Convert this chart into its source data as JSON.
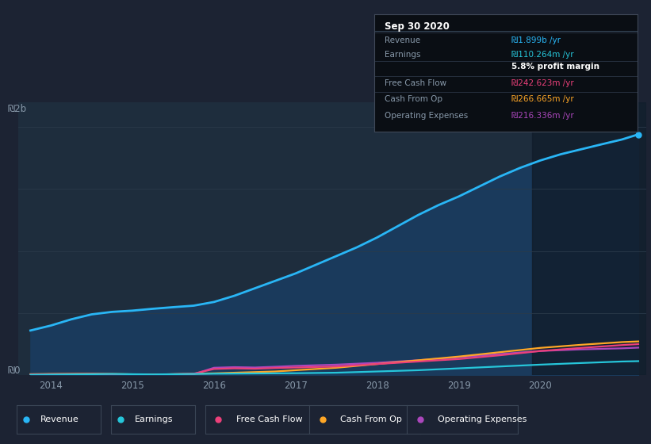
{
  "bg_color": "#1c2333",
  "plot_bg_color": "#1e2d3d",
  "overlay_color": "#151f2e",
  "overlay_start": 2019.9,
  "ylim": [
    0,
    2200000000
  ],
  "xlim": [
    2013.6,
    2021.3
  ],
  "grid_color": "#2a3a4a",
  "revenue_color": "#29b6f6",
  "earnings_color": "#26c6da",
  "fcf_color": "#ec407a",
  "cashfromop_color": "#ffa726",
  "opex_color": "#ab47bc",
  "revenue_fill": "#1a3a5c",
  "revenue": [
    [
      2013.75,
      360000000
    ],
    [
      2014.0,
      400000000
    ],
    [
      2014.25,
      450000000
    ],
    [
      2014.5,
      490000000
    ],
    [
      2014.75,
      510000000
    ],
    [
      2015.0,
      520000000
    ],
    [
      2015.25,
      535000000
    ],
    [
      2015.5,
      548000000
    ],
    [
      2015.75,
      560000000
    ],
    [
      2016.0,
      590000000
    ],
    [
      2016.25,
      640000000
    ],
    [
      2016.5,
      700000000
    ],
    [
      2016.75,
      760000000
    ],
    [
      2017.0,
      820000000
    ],
    [
      2017.25,
      890000000
    ],
    [
      2017.5,
      960000000
    ],
    [
      2017.75,
      1030000000
    ],
    [
      2018.0,
      1110000000
    ],
    [
      2018.25,
      1200000000
    ],
    [
      2018.5,
      1290000000
    ],
    [
      2018.75,
      1370000000
    ],
    [
      2019.0,
      1440000000
    ],
    [
      2019.25,
      1520000000
    ],
    [
      2019.5,
      1600000000
    ],
    [
      2019.75,
      1670000000
    ],
    [
      2020.0,
      1730000000
    ],
    [
      2020.25,
      1780000000
    ],
    [
      2020.5,
      1820000000
    ],
    [
      2020.75,
      1860000000
    ],
    [
      2021.0,
      1899000000
    ],
    [
      2021.2,
      1940000000
    ]
  ],
  "earnings": [
    [
      2013.75,
      3000000
    ],
    [
      2014.0,
      5000000
    ],
    [
      2014.5,
      8000000
    ],
    [
      2014.75,
      10000000
    ],
    [
      2015.0,
      8000000
    ],
    [
      2015.25,
      6000000
    ],
    [
      2015.5,
      8000000
    ],
    [
      2015.75,
      10000000
    ],
    [
      2016.0,
      12000000
    ],
    [
      2016.5,
      14000000
    ],
    [
      2017.0,
      16000000
    ],
    [
      2017.5,
      20000000
    ],
    [
      2018.0,
      30000000
    ],
    [
      2018.5,
      40000000
    ],
    [
      2019.0,
      55000000
    ],
    [
      2019.5,
      70000000
    ],
    [
      2020.0,
      85000000
    ],
    [
      2020.5,
      98000000
    ],
    [
      2021.0,
      110264000
    ],
    [
      2021.2,
      113000000
    ]
  ],
  "fcf": [
    [
      2013.75,
      5000000
    ],
    [
      2014.0,
      8000000
    ],
    [
      2014.5,
      10000000
    ],
    [
      2014.75,
      8000000
    ],
    [
      2015.0,
      5000000
    ],
    [
      2015.25,
      3000000
    ],
    [
      2015.5,
      8000000
    ],
    [
      2015.75,
      12000000
    ],
    [
      2016.0,
      50000000
    ],
    [
      2016.25,
      55000000
    ],
    [
      2016.5,
      52000000
    ],
    [
      2016.75,
      58000000
    ],
    [
      2017.0,
      62000000
    ],
    [
      2017.5,
      70000000
    ],
    [
      2018.0,
      90000000
    ],
    [
      2018.5,
      110000000
    ],
    [
      2019.0,
      130000000
    ],
    [
      2019.5,
      160000000
    ],
    [
      2020.0,
      195000000
    ],
    [
      2020.5,
      220000000
    ],
    [
      2021.0,
      242623000
    ],
    [
      2021.2,
      250000000
    ]
  ],
  "cashfromop": [
    [
      2013.75,
      8000000
    ],
    [
      2014.0,
      10000000
    ],
    [
      2014.5,
      12000000
    ],
    [
      2014.75,
      10000000
    ],
    [
      2015.0,
      7000000
    ],
    [
      2015.25,
      5000000
    ],
    [
      2015.5,
      8000000
    ],
    [
      2015.75,
      12000000
    ],
    [
      2016.0,
      15000000
    ],
    [
      2016.25,
      20000000
    ],
    [
      2016.5,
      25000000
    ],
    [
      2016.75,
      30000000
    ],
    [
      2017.0,
      40000000
    ],
    [
      2017.5,
      60000000
    ],
    [
      2018.0,
      90000000
    ],
    [
      2018.5,
      120000000
    ],
    [
      2019.0,
      150000000
    ],
    [
      2019.5,
      185000000
    ],
    [
      2020.0,
      220000000
    ],
    [
      2020.5,
      245000000
    ],
    [
      2021.0,
      266665000
    ],
    [
      2021.2,
      272000000
    ]
  ],
  "opex": [
    [
      2013.75,
      4000000
    ],
    [
      2014.0,
      6000000
    ],
    [
      2014.5,
      9000000
    ],
    [
      2014.75,
      7000000
    ],
    [
      2015.0,
      4000000
    ],
    [
      2015.25,
      3000000
    ],
    [
      2015.5,
      5000000
    ],
    [
      2015.75,
      8000000
    ],
    [
      2016.0,
      60000000
    ],
    [
      2016.25,
      65000000
    ],
    [
      2016.5,
      62000000
    ],
    [
      2016.75,
      68000000
    ],
    [
      2017.0,
      75000000
    ],
    [
      2017.5,
      85000000
    ],
    [
      2018.0,
      100000000
    ],
    [
      2018.5,
      120000000
    ],
    [
      2019.0,
      145000000
    ],
    [
      2019.5,
      170000000
    ],
    [
      2020.0,
      195000000
    ],
    [
      2020.5,
      208000000
    ],
    [
      2021.0,
      216336000
    ],
    [
      2021.2,
      222000000
    ]
  ],
  "ytick_labels": [
    "₪0",
    "₪2b"
  ],
  "xticks": [
    2014,
    2015,
    2016,
    2017,
    2018,
    2019,
    2020
  ],
  "tooltip_title": "Sep 30 2020",
  "tooltip_rows": [
    {
      "label": "Revenue",
      "value": "₪1.899b /yr",
      "color": "#29b6f6"
    },
    {
      "label": "Earnings",
      "value": "₪110.264m /yr",
      "color": "#26c6da"
    },
    {
      "label": "",
      "value": "5.8% profit margin",
      "color": "#ffffff",
      "bold": true
    },
    {
      "label": "Free Cash Flow",
      "value": "₪242.623m /yr",
      "color": "#ec407a"
    },
    {
      "label": "Cash From Op",
      "value": "₪266.665m /yr",
      "color": "#ffa726"
    },
    {
      "label": "Operating Expenses",
      "value": "₪216.336m /yr",
      "color": "#ab47bc"
    }
  ],
  "legend_items": [
    {
      "label": "Revenue",
      "color": "#29b6f6"
    },
    {
      "label": "Earnings",
      "color": "#26c6da"
    },
    {
      "label": "Free Cash Flow",
      "color": "#ec407a"
    },
    {
      "label": "Cash From Op",
      "color": "#ffa726"
    },
    {
      "label": "Operating Expenses",
      "color": "#ab47bc"
    }
  ]
}
